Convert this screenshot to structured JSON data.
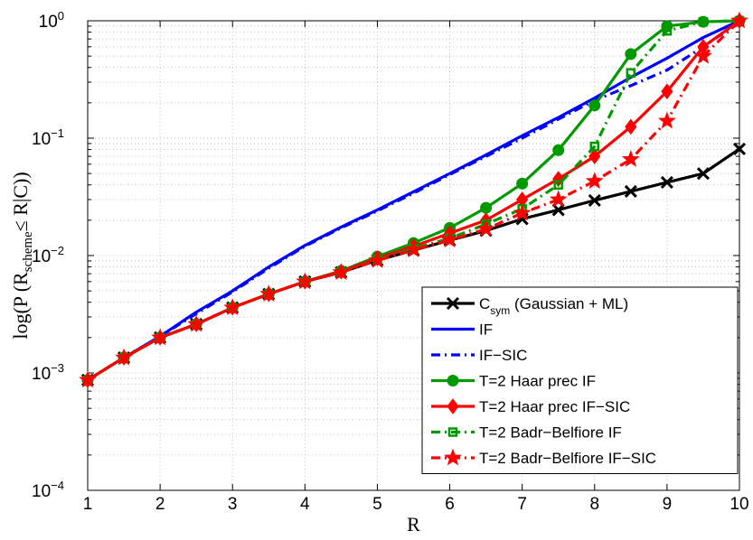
{
  "chart_data": {
    "type": "line",
    "xlabel": "R",
    "ylabel": "log(P (R",
    "ylabel_sub": "scheme",
    "ylabel_tail": "≤ R|C))",
    "xlim": [
      1,
      10
    ],
    "ylim": [
      0.0001,
      1
    ],
    "yscale": "log",
    "grid": true,
    "legend_position": "bottom-right",
    "x_ticks": [
      "1",
      "2",
      "3",
      "4",
      "5",
      "6",
      "7",
      "8",
      "9",
      "10"
    ],
    "y_ticks": [
      {
        "base": "10",
        "exp": "−4",
        "value": 0.0001
      },
      {
        "base": "10",
        "exp": "−3",
        "value": 0.001
      },
      {
        "base": "10",
        "exp": "−2",
        "value": 0.01
      },
      {
        "base": "10",
        "exp": "−1",
        "value": 0.1
      },
      {
        "base": "10",
        "exp": "0",
        "value": 1
      }
    ],
    "series": [
      {
        "name": "C",
        "name_sub": "sym",
        "name_tail": " (Gaussian + ML)",
        "color": "#000000",
        "dash": "solid",
        "marker": "x",
        "x": [
          1,
          1.5,
          2,
          2.5,
          3,
          3.5,
          4,
          4.5,
          5,
          5.5,
          6,
          6.5,
          7,
          7.5,
          8,
          8.5,
          9,
          9.5,
          10
        ],
        "values": [
          0.00087,
          0.00135,
          0.002,
          0.0026,
          0.0036,
          0.0047,
          0.006,
          0.0072,
          0.0091,
          0.0111,
          0.0135,
          0.0163,
          0.0205,
          0.0245,
          0.0295,
          0.0352,
          0.042,
          0.05,
          0.081
        ]
      },
      {
        "name": "IF",
        "color": "#0000ff",
        "dash": "solid",
        "marker": "none",
        "x": [
          1,
          1.5,
          2,
          2.5,
          3,
          3.5,
          4,
          4.5,
          5,
          5.5,
          6,
          6.5,
          7,
          7.5,
          8,
          8.5,
          9,
          9.5,
          10
        ],
        "values": [
          0.00087,
          0.00135,
          0.00205,
          0.0033,
          0.005,
          0.008,
          0.0122,
          0.0175,
          0.0245,
          0.035,
          0.05,
          0.072,
          0.105,
          0.15,
          0.22,
          0.33,
          0.48,
          0.72,
          1.0
        ]
      },
      {
        "name": "IF−SIC",
        "color": "#0000ff",
        "dash": "dashdot",
        "marker": "none",
        "x": [
          1,
          1.5,
          2,
          2.5,
          3,
          3.5,
          4,
          4.5,
          5,
          5.5,
          6,
          6.5,
          7,
          7.5,
          8,
          8.5,
          9,
          9.5,
          10
        ],
        "values": [
          0.00087,
          0.00135,
          0.00205,
          0.0032,
          0.0049,
          0.0078,
          0.012,
          0.0172,
          0.024,
          0.034,
          0.049,
          0.07,
          0.1,
          0.145,
          0.21,
          0.28,
          0.38,
          0.6,
          0.98
        ]
      },
      {
        "name": "T=2 Haar prec IF",
        "color": "#009900",
        "dash": "solid",
        "marker": "circle",
        "x": [
          1,
          1.5,
          2,
          2.5,
          3,
          3.5,
          4,
          4.5,
          5,
          5.5,
          6,
          6.5,
          7,
          7.5,
          8,
          8.5,
          9,
          9.5,
          10
        ],
        "values": [
          0.00087,
          0.00135,
          0.002,
          0.0026,
          0.0036,
          0.0047,
          0.006,
          0.0074,
          0.0098,
          0.0128,
          0.0172,
          0.0255,
          0.041,
          0.079,
          0.19,
          0.52,
          0.9,
          0.98,
          1.0
        ]
      },
      {
        "name": "T=2 Haar prec IF−SIC",
        "color": "#ff0000",
        "dash": "solid",
        "marker": "diamond",
        "x": [
          1,
          1.5,
          2,
          2.5,
          3,
          3.5,
          4,
          4.5,
          5,
          5.5,
          6,
          6.5,
          7,
          7.5,
          8,
          8.5,
          9,
          9.5,
          10
        ],
        "values": [
          0.00087,
          0.00135,
          0.002,
          0.0026,
          0.0036,
          0.0047,
          0.006,
          0.0073,
          0.0095,
          0.012,
          0.0155,
          0.02,
          0.03,
          0.045,
          0.07,
          0.125,
          0.25,
          0.6,
          1.0
        ]
      },
      {
        "name": "T=2 Badr−Belfiore IF",
        "color": "#009900",
        "dash": "dashdot",
        "marker": "square",
        "x": [
          1,
          1.5,
          2,
          2.5,
          3,
          3.5,
          4,
          4.5,
          5,
          5.5,
          6,
          6.5,
          7,
          7.5,
          8,
          8.5,
          9,
          9.5,
          10
        ],
        "values": [
          0.00087,
          0.00135,
          0.002,
          0.0026,
          0.0036,
          0.0047,
          0.006,
          0.0072,
          0.0092,
          0.0115,
          0.014,
          0.0185,
          0.025,
          0.04,
          0.085,
          0.36,
          0.82,
          0.98,
          1.0
        ]
      },
      {
        "name": "T=2 Badr−Belfiore IF−SIC",
        "color": "#ff0000",
        "dash": "dashdot",
        "marker": "star",
        "x": [
          1,
          1.5,
          2,
          2.5,
          3,
          3.5,
          4,
          4.5,
          5,
          5.5,
          6,
          6.5,
          7,
          7.5,
          8,
          8.5,
          9,
          9.5,
          10
        ],
        "values": [
          0.00087,
          0.00135,
          0.002,
          0.0026,
          0.0036,
          0.0047,
          0.006,
          0.0072,
          0.0091,
          0.0112,
          0.0136,
          0.0168,
          0.023,
          0.03,
          0.043,
          0.066,
          0.14,
          0.5,
          1.0
        ]
      }
    ]
  }
}
